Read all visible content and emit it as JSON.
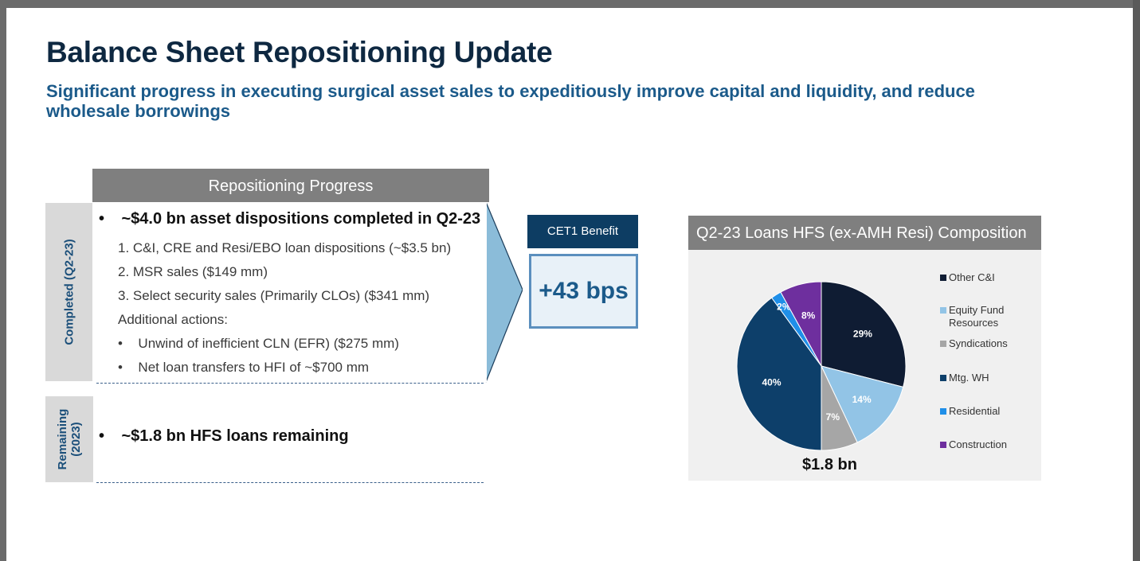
{
  "title": "Balance Sheet Repositioning Update",
  "subtitle": "Significant progress in executing surgical asset sales to expeditiously improve capital and liquidity, and reduce wholesale borrowings",
  "progress": {
    "header": "Repositioning Progress",
    "completed_label": "Completed (Q2-23)",
    "remaining_label_1": "Remaining",
    "remaining_label_2": "(2023)",
    "bullet_main": "~$4.0 bn asset dispositions completed in Q2-23",
    "items": [
      "1.   C&I, CRE and Resi/EBO loan dispositions (~$3.5 bn)",
      "2.   MSR sales ($149 mm)",
      "3.   Select security sales (Primarily CLOs) ($341 mm)"
    ],
    "additional": "Additional actions:",
    "sub_items": [
      "Unwind of inefficient CLN (EFR) ($275 mm)",
      "Net loan transfers to HFI of ~$700 mm"
    ],
    "remaining_bullet": "~$1.8 bn HFS loans remaining",
    "bullet_glyph": "•"
  },
  "cet1": {
    "label": "CET1 Benefit",
    "value": "+43 bps"
  },
  "pie": {
    "header": "Q2-23 Loans HFS (ex-AMH Resi) Composition",
    "total": "$1.8 bn"
  },
  "chart_data": {
    "type": "pie",
    "title": "Q2-23 Loans HFS (ex-AMH Resi) Composition",
    "slices": [
      {
        "name": "Other C&I",
        "value": 29,
        "label": "29%",
        "color": "#0f1c33"
      },
      {
        "name": "Equity Fund Resources",
        "value": 14,
        "label": "14%",
        "color": "#92c4e6"
      },
      {
        "name": "Syndications",
        "value": 7,
        "label": "7%",
        "color": "#a6a6a6"
      },
      {
        "name": "Mtg. WH",
        "value": 40,
        "label": "40%",
        "color": "#0d3f6a"
      },
      {
        "name": "Residential",
        "value": 2,
        "label": "2%",
        "color": "#1f8fe8"
      },
      {
        "name": "Construction",
        "value": 8,
        "label": "8%",
        "color": "#6e2f9e"
      }
    ],
    "legend": [
      {
        "line1": "Other C&I",
        "line2": ""
      },
      {
        "line1": "Equity Fund",
        "line2": "Resources"
      },
      {
        "line1": "Syndications",
        "line2": ""
      },
      {
        "line1": "Mtg. WH",
        "line2": ""
      },
      {
        "line1": "Residential",
        "line2": ""
      },
      {
        "line1": "Construction",
        "line2": ""
      }
    ],
    "legend_position": "right"
  }
}
